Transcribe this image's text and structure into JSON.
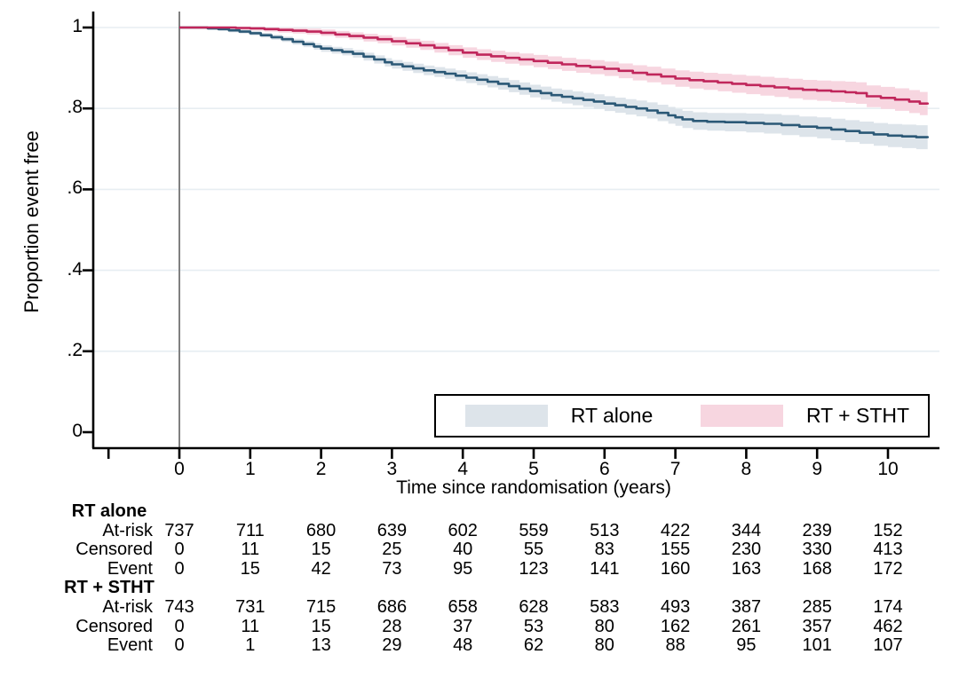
{
  "chart_data": {
    "type": "line",
    "step": true,
    "title": "",
    "xlabel": "Time since randomisation (years)",
    "ylabel": "Proportion event free",
    "xlim": [
      -1.2,
      10.7
    ],
    "ylim": [
      0,
      1.05
    ],
    "grid": "horizontal",
    "legend_position": "bottom-right-inside",
    "colors": {
      "grid": "#e7eef2",
      "zero_line": "#808080",
      "axis": "#000000",
      "rt_alone_line": "#2b5876",
      "rt_alone_band": "#dde4ea",
      "rt_stht_line": "#c0265b",
      "rt_stht_band": "#f7d6e0"
    },
    "x_axis": {
      "ticks": [
        {
          "v": -1,
          "label": ""
        },
        {
          "v": 0,
          "label": "0"
        },
        {
          "v": 1,
          "label": "1"
        },
        {
          "v": 2,
          "label": "2"
        },
        {
          "v": 3,
          "label": "3"
        },
        {
          "v": 4,
          "label": "4"
        },
        {
          "v": 5,
          "label": "5"
        },
        {
          "v": 6,
          "label": "6"
        },
        {
          "v": 7,
          "label": "7"
        },
        {
          "v": 8,
          "label": "8"
        },
        {
          "v": 9,
          "label": "9"
        },
        {
          "v": 10,
          "label": "10"
        }
      ]
    },
    "y_axis": {
      "ticks": [
        {
          "v": 0,
          "label": "0"
        },
        {
          "v": 0.2,
          "label": ".2"
        },
        {
          "v": 0.4,
          "label": ".4"
        },
        {
          "v": 0.6,
          "label": ".6"
        },
        {
          "v": 0.8,
          "label": ".8"
        },
        {
          "v": 1,
          "label": "1"
        }
      ]
    },
    "series": [
      {
        "name": "RT alone",
        "slug": "rt-alone",
        "line_color": "#2b5876",
        "band_color": "#dde4ea",
        "ci_halfwidth": {
          "start": 0.003,
          "end": 0.03
        },
        "points": [
          [
            0,
            1
          ],
          [
            0.4,
            1
          ],
          [
            0.4,
            0.998
          ],
          [
            0.55,
            0.996
          ],
          [
            0.7,
            0.993
          ],
          [
            0.85,
            0.99
          ],
          [
            1.0,
            0.986
          ],
          [
            1.15,
            0.981
          ],
          [
            1.3,
            0.976
          ],
          [
            1.45,
            0.971
          ],
          [
            1.6,
            0.965
          ],
          [
            1.75,
            0.959
          ],
          [
            1.9,
            0.953
          ],
          [
            2.0,
            0.948
          ],
          [
            2.15,
            0.944
          ],
          [
            2.3,
            0.94
          ],
          [
            2.45,
            0.935
          ],
          [
            2.6,
            0.928
          ],
          [
            2.75,
            0.921
          ],
          [
            2.9,
            0.914
          ],
          [
            3.0,
            0.909
          ],
          [
            3.15,
            0.904
          ],
          [
            3.3,
            0.899
          ],
          [
            3.45,
            0.894
          ],
          [
            3.6,
            0.89
          ],
          [
            3.75,
            0.886
          ],
          [
            3.9,
            0.881
          ],
          [
            4.05,
            0.876
          ],
          [
            4.2,
            0.871
          ],
          [
            4.35,
            0.866
          ],
          [
            4.5,
            0.861
          ],
          [
            4.65,
            0.855
          ],
          [
            4.8,
            0.849
          ],
          [
            4.95,
            0.843
          ],
          [
            5.1,
            0.838
          ],
          [
            5.25,
            0.833
          ],
          [
            5.4,
            0.829
          ],
          [
            5.55,
            0.825
          ],
          [
            5.7,
            0.821
          ],
          [
            5.85,
            0.817
          ],
          [
            6.0,
            0.812
          ],
          [
            6.15,
            0.808
          ],
          [
            6.3,
            0.804
          ],
          [
            6.45,
            0.8
          ],
          [
            6.6,
            0.795
          ],
          [
            6.75,
            0.789
          ],
          [
            6.9,
            0.783
          ],
          [
            7.0,
            0.778
          ],
          [
            7.1,
            0.773
          ],
          [
            7.25,
            0.769
          ],
          [
            7.45,
            0.767
          ],
          [
            7.7,
            0.766
          ],
          [
            8.0,
            0.764
          ],
          [
            8.25,
            0.762
          ],
          [
            8.5,
            0.759
          ],
          [
            8.75,
            0.755
          ],
          [
            9.0,
            0.752
          ],
          [
            9.2,
            0.748
          ],
          [
            9.4,
            0.744
          ],
          [
            9.6,
            0.74
          ],
          [
            9.8,
            0.736
          ],
          [
            10.0,
            0.733
          ],
          [
            10.2,
            0.731
          ],
          [
            10.4,
            0.729
          ],
          [
            10.56,
            0.727
          ]
        ]
      },
      {
        "name": "RT + STHT",
        "slug": "rt-stht",
        "line_color": "#c0265b",
        "band_color": "#f7d6e0",
        "ci_halfwidth": {
          "start": 0.003,
          "end": 0.029
        },
        "points": [
          [
            0,
            1
          ],
          [
            0.8,
            1
          ],
          [
            0.8,
            0.999
          ],
          [
            1.0,
            0.998
          ],
          [
            1.2,
            0.996
          ],
          [
            1.4,
            0.994
          ],
          [
            1.6,
            0.992
          ],
          [
            1.8,
            0.99
          ],
          [
            2.0,
            0.987
          ],
          [
            2.2,
            0.983
          ],
          [
            2.4,
            0.979
          ],
          [
            2.6,
            0.975
          ],
          [
            2.8,
            0.971
          ],
          [
            3.0,
            0.966
          ],
          [
            3.2,
            0.961
          ],
          [
            3.4,
            0.956
          ],
          [
            3.6,
            0.95
          ],
          [
            3.8,
            0.944
          ],
          [
            4.0,
            0.938
          ],
          [
            4.2,
            0.933
          ],
          [
            4.4,
            0.929
          ],
          [
            4.6,
            0.925
          ],
          [
            4.8,
            0.921
          ],
          [
            5.0,
            0.917
          ],
          [
            5.2,
            0.913
          ],
          [
            5.4,
            0.909
          ],
          [
            5.6,
            0.905
          ],
          [
            5.8,
            0.902
          ],
          [
            6.0,
            0.898
          ],
          [
            6.2,
            0.893
          ],
          [
            6.4,
            0.888
          ],
          [
            6.6,
            0.884
          ],
          [
            6.8,
            0.879
          ],
          [
            7.0,
            0.874
          ],
          [
            7.2,
            0.87
          ],
          [
            7.4,
            0.867
          ],
          [
            7.6,
            0.864
          ],
          [
            7.8,
            0.861
          ],
          [
            8.0,
            0.858
          ],
          [
            8.2,
            0.855
          ],
          [
            8.4,
            0.852
          ],
          [
            8.6,
            0.849
          ],
          [
            8.8,
            0.846
          ],
          [
            9.0,
            0.844
          ],
          [
            9.2,
            0.842
          ],
          [
            9.4,
            0.84
          ],
          [
            9.55,
            0.838
          ],
          [
            9.7,
            0.83
          ],
          [
            9.9,
            0.826
          ],
          [
            10.1,
            0.822
          ],
          [
            10.3,
            0.817
          ],
          [
            10.45,
            0.812
          ],
          [
            10.56,
            0.81
          ]
        ]
      }
    ]
  },
  "risk_table": {
    "time_values": [
      0,
      1,
      2,
      3,
      4,
      5,
      6,
      7,
      8,
      9,
      10
    ],
    "groups": [
      {
        "name": "RT alone",
        "slug": "rt-alone",
        "rows": [
          {
            "label": "At-risk",
            "values": [
              737,
              711,
              680,
              639,
              602,
              559,
              513,
              422,
              344,
              239,
              152
            ]
          },
          {
            "label": "Censored",
            "values": [
              0,
              11,
              15,
              25,
              40,
              55,
              83,
              155,
              230,
              330,
              413
            ]
          },
          {
            "label": "Event",
            "values": [
              0,
              15,
              42,
              73,
              95,
              123,
              141,
              160,
              163,
              168,
              172
            ]
          }
        ]
      },
      {
        "name": "RT + STHT",
        "slug": "rt-stht",
        "rows": [
          {
            "label": "At-risk",
            "values": [
              743,
              731,
              715,
              686,
              658,
              628,
              583,
              493,
              387,
              285,
              174
            ]
          },
          {
            "label": "Censored",
            "values": [
              0,
              11,
              15,
              28,
              37,
              53,
              80,
              162,
              261,
              357,
              462
            ]
          },
          {
            "label": "Event",
            "values": [
              0,
              1,
              13,
              29,
              48,
              62,
              80,
              88,
              95,
              101,
              107
            ]
          }
        ]
      }
    ]
  }
}
